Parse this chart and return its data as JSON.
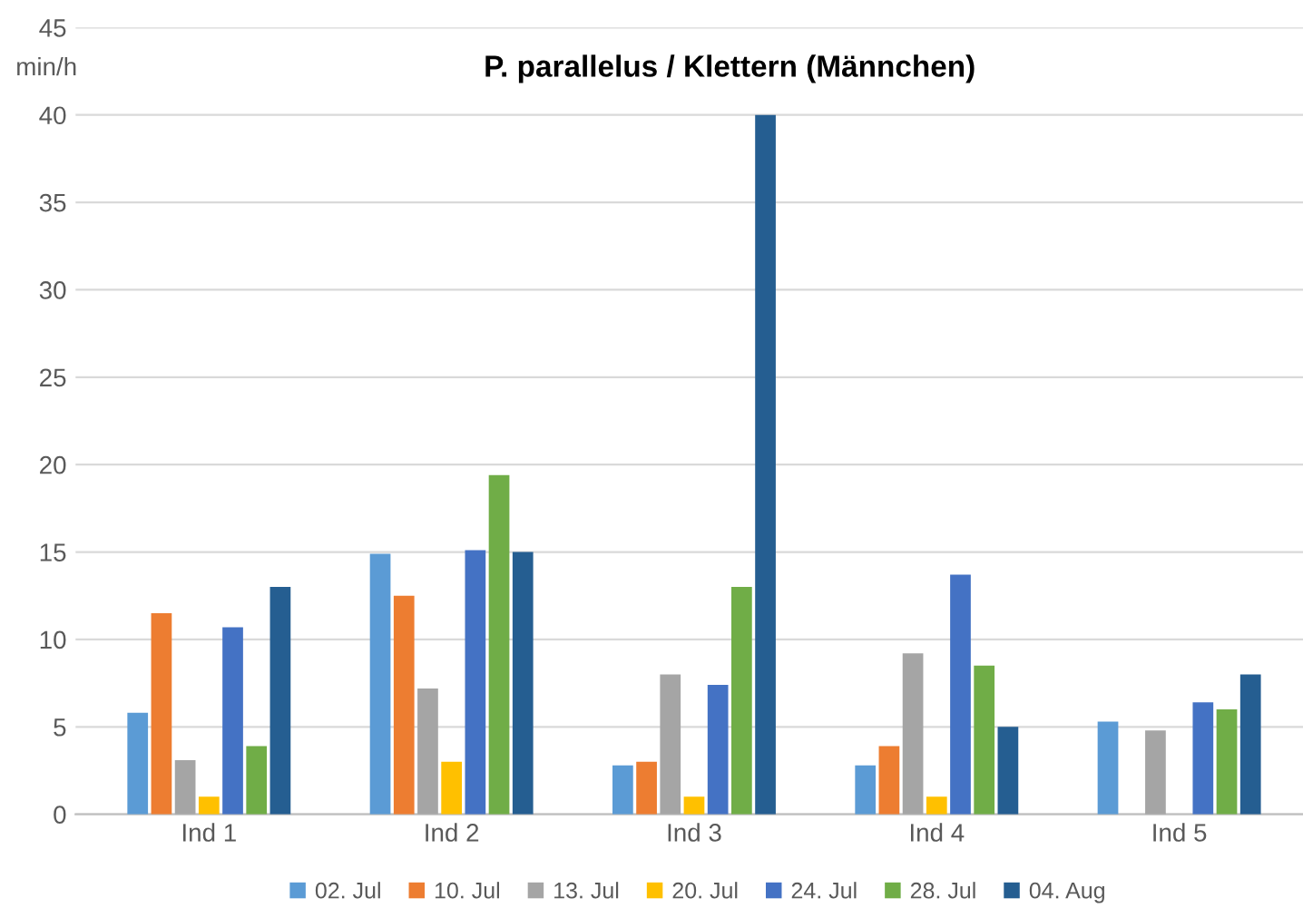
{
  "chart_data": {
    "type": "bar",
    "title": "P. parallelus / Klettern (Männchen)",
    "ylabel": "min/h",
    "categories": [
      "Ind 1",
      "Ind 2",
      "Ind 3",
      "Ind 4",
      "Ind 5"
    ],
    "series": [
      {
        "name": "02. Jul",
        "color": "#5b9bd5",
        "values": [
          5.8,
          14.9,
          2.8,
          2.8,
          5.3
        ]
      },
      {
        "name": "10. Jul",
        "color": "#ed7d31",
        "values": [
          11.5,
          12.5,
          3.0,
          3.9,
          null
        ]
      },
      {
        "name": "13. Jul",
        "color": "#a5a5a5",
        "values": [
          3.1,
          7.2,
          8.0,
          9.2,
          4.8
        ]
      },
      {
        "name": "20. Jul",
        "color": "#ffc000",
        "values": [
          1.0,
          3.0,
          1.0,
          1.0,
          null
        ]
      },
      {
        "name": "24. Jul",
        "color": "#4472c4",
        "values": [
          10.7,
          15.1,
          7.4,
          13.7,
          6.4
        ]
      },
      {
        "name": "28. Jul",
        "color": "#70ad47",
        "values": [
          3.9,
          19.4,
          13.0,
          8.5,
          6.0
        ]
      },
      {
        "name": "04. Aug",
        "color": "#255e91",
        "values": [
          13.0,
          15.0,
          40,
          5.0,
          8.0
        ]
      }
    ],
    "ylim": [
      0,
      45
    ],
    "yticks": [
      0,
      5,
      10,
      15,
      20,
      25,
      30,
      35,
      40,
      45
    ],
    "grid": "y",
    "legend": "bottom"
  }
}
